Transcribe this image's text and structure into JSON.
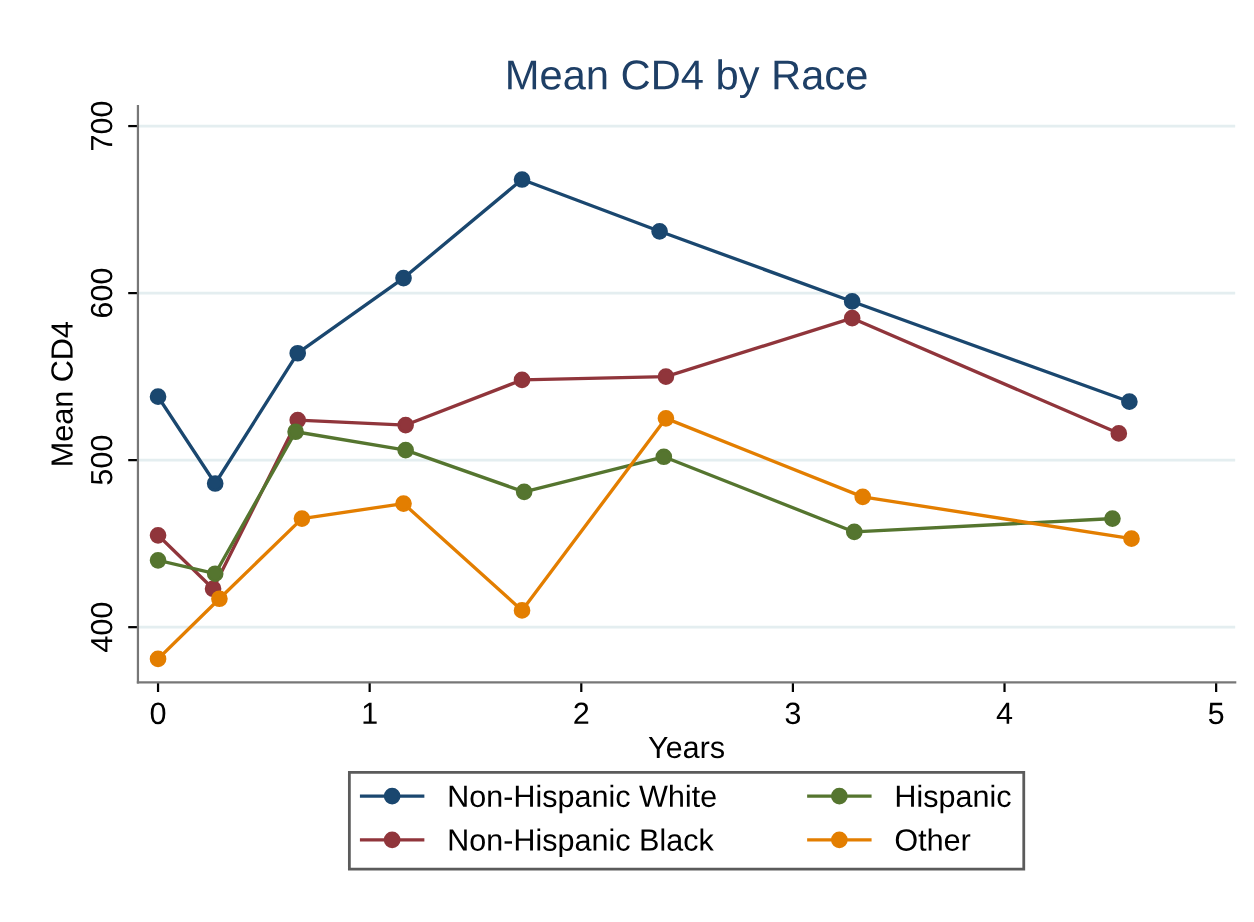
{
  "chart_data": {
    "type": "line",
    "title": "Mean CD4 by Race",
    "xlabel": "Years",
    "ylabel": "Mean CD4",
    "xlim": [
      -0.095,
      5.09
    ],
    "ylim": [
      367,
      712
    ],
    "xticks": [
      0,
      1,
      2,
      3,
      4,
      5
    ],
    "yticks": [
      400,
      500,
      600,
      700
    ],
    "grid": "y",
    "legend": "bottom",
    "marker": "circle",
    "line_style": "solid",
    "series": [
      {
        "name": "Non-Hispanic White",
        "color": "#1a476f",
        "x": [
          0,
          0.27,
          0.66,
          1.16,
          1.72,
          2.37,
          3.28,
          4.59
        ],
        "values": [
          538,
          486,
          564,
          609,
          668,
          637,
          595,
          535
        ]
      },
      {
        "name": "Non-Hispanic Black",
        "color": "#90353b",
        "x": [
          0,
          0.26,
          0.66,
          1.17,
          1.72,
          2.4,
          3.28,
          4.54
        ],
        "values": [
          455,
          423,
          524,
          521,
          548,
          550,
          585,
          516
        ]
      },
      {
        "name": "Hispanic",
        "color": "#55752f",
        "x": [
          0,
          0.27,
          0.65,
          1.17,
          1.73,
          2.39,
          3.29,
          4.51
        ],
        "values": [
          440,
          432,
          517,
          506,
          481,
          502,
          457,
          465
        ]
      },
      {
        "name": "Other",
        "color": "#e37e00",
        "x": [
          0,
          0.29,
          0.68,
          1.16,
          1.72,
          2.4,
          3.33,
          4.6
        ],
        "values": [
          381,
          417,
          465,
          474,
          410,
          525,
          478,
          453
        ]
      }
    ]
  }
}
